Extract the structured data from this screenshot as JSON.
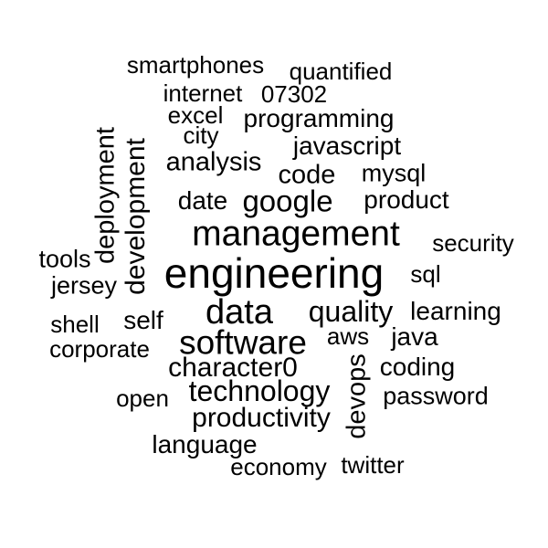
{
  "cloud": {
    "words": {
      "smartphones": "smartphones",
      "quantified": "quantified",
      "internet": "internet",
      "07302": "07302",
      "excel": "excel",
      "programming": "programming",
      "city": "city",
      "javascript": "javascript",
      "analysis": "analysis",
      "code": "code",
      "mysql": "mysql",
      "date": "date",
      "google": "google",
      "product": "product",
      "management": "management",
      "security": "security",
      "tools": "tools",
      "engineering": "engineering",
      "sql": "sql",
      "jersey": "jersey",
      "data": "data",
      "quality": "quality",
      "learning": "learning",
      "shell": "shell",
      "self": "self",
      "aws": "aws",
      "java": "java",
      "software": "software",
      "corporate": "corporate",
      "character0": "character0",
      "coding": "coding",
      "technology": "technology",
      "open": "open",
      "password": "password",
      "productivity": "productivity",
      "language": "language",
      "economy": "economy",
      "twitter": "twitter",
      "deployment": "deployment",
      "development": "development",
      "devops": "devops"
    }
  }
}
